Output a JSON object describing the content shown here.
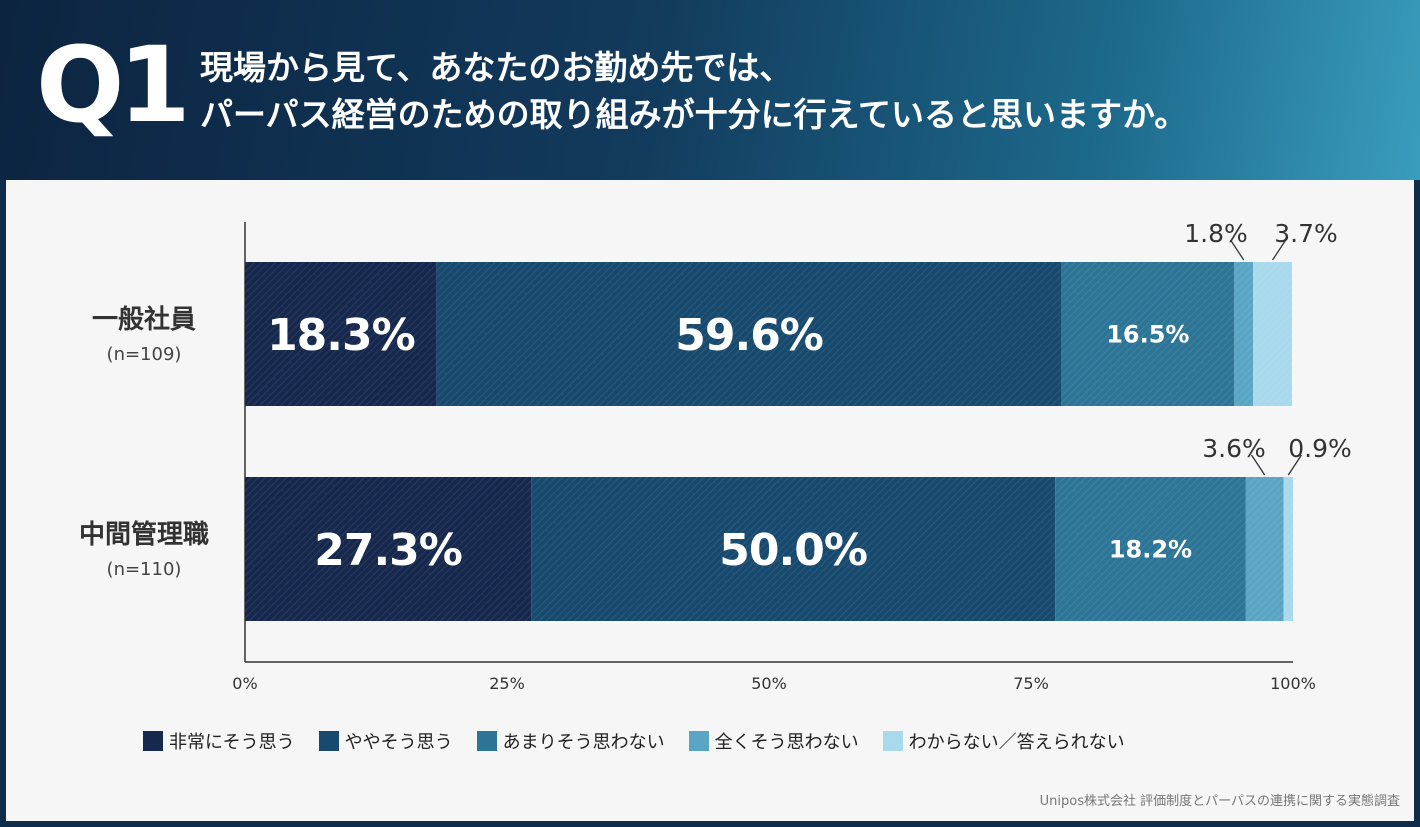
{
  "question": {
    "mark": "Q1",
    "lines": [
      "現場から見て、あなたのお勤め先では、",
      "パーパス経営のための取り組みが十分に行えていると思いますか。"
    ]
  },
  "source": "Unipos株式会社 評価制度とパーパスの連携に関する実態調査",
  "chart_data": {
    "type": "bar",
    "orientation": "horizontal",
    "stacked": true,
    "categories": [
      {
        "name": "一般社員",
        "n": "(n=109)"
      },
      {
        "name": "中間管理職",
        "n": "(n=110)"
      }
    ],
    "series": [
      {
        "name": "非常にそう思う",
        "values": [
          18.3,
          27.3
        ],
        "labels": [
          "18.3%",
          "27.3%"
        ],
        "color": "#16284d"
      },
      {
        "name": "ややそう思う",
        "values": [
          59.6,
          50.0
        ],
        "labels": [
          "59.6%",
          "50.0%"
        ],
        "color": "#174a6e"
      },
      {
        "name": "あまりそう思わない",
        "values": [
          16.5,
          18.2
        ],
        "labels": [
          "16.5%",
          "18.2%"
        ],
        "color": "#2d7596"
      },
      {
        "name": "全くそう思わない",
        "values": [
          1.8,
          3.6
        ],
        "labels": [
          "1.8%",
          "3.6%"
        ],
        "color": "#5aa5c4"
      },
      {
        "name": "わからない／答えられない",
        "values": [
          3.7,
          0.9
        ],
        "labels": [
          "3.7%",
          "0.9%"
        ],
        "color": "#a8d9ec"
      }
    ],
    "xlim": [
      0,
      100
    ],
    "x_ticks": [
      "0%",
      "25%",
      "50%",
      "75%",
      "100%"
    ],
    "legend_position": "bottom",
    "grid": false
  }
}
